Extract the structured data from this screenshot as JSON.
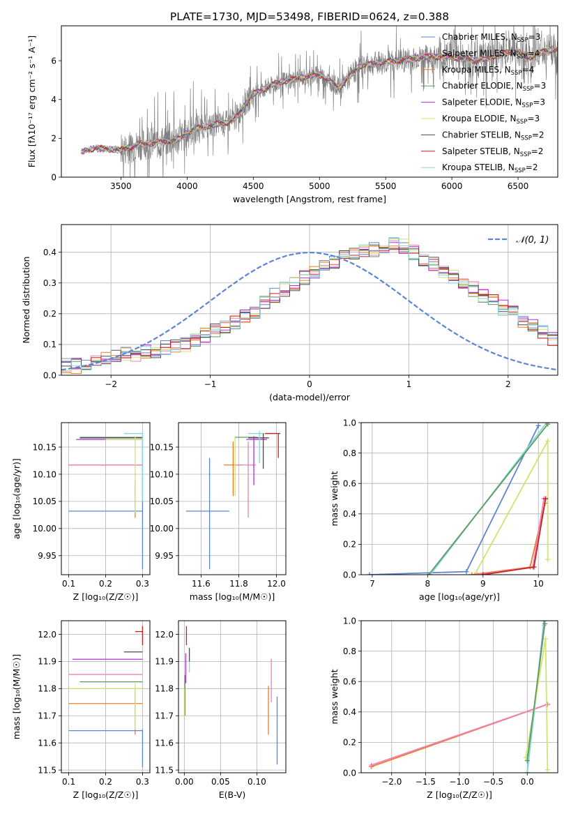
{
  "figure_title": "PLATE=1730, MJD=53498, FIBERID=0624, z=0.388",
  "series": [
    {
      "name": "Chabrier MILES",
      "nssp": "3",
      "color": "#5b84d6"
    },
    {
      "name": "Salpeter MILES",
      "nssp": "4",
      "color": "#ef7fbd"
    },
    {
      "name": "Kroupa MILES",
      "nssp": "4",
      "color": "#f07c24"
    },
    {
      "name": "Chabrier ELODIE",
      "nssp": "3",
      "color": "#5e9a5e"
    },
    {
      "name": "Salpeter ELODIE",
      "nssp": "3",
      "color": "#b02fd8"
    },
    {
      "name": "Kroupa ELODIE",
      "nssp": "3",
      "color": "#cfe46a"
    },
    {
      "name": "Chabrier STELIB",
      "nssp": "2",
      "color": "#4a4a4a"
    },
    {
      "name": "Salpeter STELIB",
      "nssp": "2",
      "color": "#c81e1e"
    },
    {
      "name": "Kroupa STELIB",
      "nssp": "2",
      "color": "#86d6dd"
    }
  ],
  "chart_data": [
    {
      "id": "spectrum",
      "type": "line",
      "xlabel": "wavelength [Angstrom, rest frame]",
      "ylabel": "Flux [fλ10⁻¹⁷ erg cm⁻² s⁻¹ A⁻¹]",
      "xlim": [
        3050,
        6800
      ],
      "ylim": [
        0,
        7.8
      ],
      "xticks": [
        3500,
        4000,
        4500,
        5000,
        5500,
        6000,
        6500
      ],
      "yticks": [
        0,
        2,
        4,
        6
      ],
      "data_color": "#808080",
      "continuum": [
        [
          3200,
          1.3
        ],
        [
          3300,
          1.5
        ],
        [
          3400,
          1.45
        ],
        [
          3500,
          1.4
        ],
        [
          3650,
          1.7
        ],
        [
          3800,
          1.8
        ],
        [
          3950,
          2.0
        ],
        [
          4050,
          2.5
        ],
        [
          4200,
          2.7
        ],
        [
          4350,
          2.9
        ],
        [
          4500,
          4.3
        ],
        [
          4600,
          4.6
        ],
        [
          4700,
          4.9
        ],
        [
          4850,
          5.1
        ],
        [
          5000,
          5.3
        ],
        [
          5150,
          4.6
        ],
        [
          5300,
          5.7
        ],
        [
          5450,
          5.9
        ],
        [
          5600,
          6.0
        ],
        [
          5800,
          6.2
        ],
        [
          6000,
          6.2
        ],
        [
          6200,
          6.0
        ],
        [
          6400,
          6.4
        ],
        [
          6500,
          6.5
        ],
        [
          6560,
          6.1
        ],
        [
          6700,
          6.5
        ],
        [
          6800,
          6.6
        ]
      ]
    },
    {
      "id": "residuals",
      "type": "line",
      "xlabel": "(data-model)/error",
      "ylabel": "Normed distribution",
      "xlim": [
        -2.5,
        2.5
      ],
      "ylim": [
        0,
        0.49
      ],
      "xticks": [
        -2,
        -1,
        0,
        1,
        2
      ],
      "yticks": [
        0.0,
        0.1,
        0.2,
        0.3,
        0.4
      ],
      "gaussian_label": "𝒩(0, 1)",
      "gaussian_color": "#5b84d6",
      "bin_start": -2.5,
      "bin_width": 0.1,
      "base_counts": [
        0.03,
        0.03,
        0.03,
        0.04,
        0.05,
        0.06,
        0.07,
        0.07,
        0.08,
        0.08,
        0.09,
        0.1,
        0.1,
        0.11,
        0.13,
        0.15,
        0.16,
        0.17,
        0.19,
        0.21,
        0.24,
        0.26,
        0.28,
        0.3,
        0.32,
        0.34,
        0.35,
        0.37,
        0.38,
        0.39,
        0.4,
        0.41,
        0.42,
        0.43,
        0.42,
        0.4,
        0.38,
        0.36,
        0.34,
        0.32,
        0.3,
        0.28,
        0.26,
        0.24,
        0.22,
        0.2,
        0.18,
        0.16,
        0.14,
        0.12,
        0.11,
        0.1,
        0.08,
        0.07,
        0.06,
        0.05,
        0.05,
        0.04,
        0.04,
        0.03
      ]
    },
    {
      "id": "z-age",
      "type": "scatter",
      "xlabel": "Z [log₁₀(Z/Z☉)]",
      "ylabel": "age  [log₁₀(age/yr)]",
      "xlim": [
        0.08,
        0.32
      ],
      "ylim": [
        9.915,
        10.195
      ],
      "xticks": [
        0.1,
        0.2,
        0.3
      ],
      "yticks": [
        9.95,
        10.0,
        10.05,
        10.1,
        10.15
      ],
      "hbars": [
        {
          "series": 0,
          "y": 10.032,
          "x0": 0.1,
          "x1": 0.3
        },
        {
          "series": 2,
          "y": 10.117,
          "x0": 0.1,
          "x1": 0.3
        },
        {
          "series": 1,
          "y": 10.117,
          "x0": 0.1,
          "x1": 0.3
        },
        {
          "series": 4,
          "y": 10.164,
          "x0": 0.12,
          "x1": 0.3
        },
        {
          "series": 3,
          "y": 10.168,
          "x0": 0.13,
          "x1": 0.3
        },
        {
          "series": 6,
          "y": 10.167,
          "x0": 0.13,
          "x1": 0.3
        },
        {
          "series": 8,
          "y": 10.175,
          "x0": 0.25,
          "x1": 0.3
        },
        {
          "series": 5,
          "y": 10.164,
          "x0": 0.2,
          "x1": 0.3
        }
      ],
      "vbars": [
        {
          "series": 0,
          "x": 0.3,
          "y0": 9.925,
          "y1": 10.17
        },
        {
          "series": 2,
          "x": 0.28,
          "y0": 10.02,
          "y1": 10.085
        },
        {
          "series": 5,
          "x": 0.28,
          "y0": 10.03,
          "y1": 10.17
        },
        {
          "series": 8,
          "x": 0.3,
          "y0": 10.05,
          "y1": 10.175
        }
      ]
    },
    {
      "id": "mass-age",
      "type": "scatter",
      "xlabel": "mass [log₁₀(M/M☉)]",
      "ylabel": "",
      "xlim": [
        11.48,
        12.05
      ],
      "ylim": [
        9.915,
        10.195
      ],
      "xticks": [
        11.6,
        11.8,
        12.0
      ],
      "yticks": [
        9.95,
        10.0,
        10.05,
        10.1,
        10.15
      ],
      "hbars": [
        {
          "series": 0,
          "y": 10.032,
          "x0": 11.52,
          "x1": 11.75
        },
        {
          "series": 2,
          "y": 10.117,
          "x0": 11.72,
          "x1": 11.82
        },
        {
          "series": 1,
          "y": 10.117,
          "x0": 11.8,
          "x1": 11.89
        },
        {
          "series": 3,
          "y": 10.168,
          "x0": 11.78,
          "x1": 11.9
        },
        {
          "series": 4,
          "y": 10.164,
          "x0": 11.84,
          "x1": 11.95
        },
        {
          "series": 6,
          "y": 10.167,
          "x0": 11.85,
          "x1": 11.96
        },
        {
          "series": 8,
          "y": 10.175,
          "x0": 11.85,
          "x1": 11.98
        },
        {
          "series": 7,
          "y": 10.175,
          "x0": 11.94,
          "x1": 12.02
        }
      ],
      "vbars": [
        {
          "series": 0,
          "x": 11.645,
          "y0": 9.925,
          "y1": 10.13
        },
        {
          "series": 5,
          "x": 11.78,
          "y0": 10.06,
          "y1": 10.17
        },
        {
          "series": 2,
          "x": 11.77,
          "y0": 10.06,
          "y1": 10.16
        },
        {
          "series": 1,
          "x": 11.85,
          "y0": 10.02,
          "y1": 10.16
        },
        {
          "series": 4,
          "x": 11.88,
          "y0": 10.08,
          "y1": 10.17
        },
        {
          "series": 6,
          "x": 11.93,
          "y0": 10.11,
          "y1": 10.175
        },
        {
          "series": 8,
          "x": 11.91,
          "y0": 10.12,
          "y1": 10.18
        },
        {
          "series": 7,
          "x": 12.01,
          "y0": 10.13,
          "y1": 10.175
        }
      ]
    },
    {
      "id": "age-weight",
      "type": "line",
      "xlabel": "age  [log₁₀(age/yr)]",
      "ylabel": "mass weight",
      "xlim": [
        6.8,
        10.35
      ],
      "ylim": [
        0,
        1.0
      ],
      "xticks": [
        7,
        8,
        9,
        10
      ],
      "yticks": [
        0.0,
        0.2,
        0.4,
        0.6,
        0.8,
        1.0
      ],
      "lines": [
        {
          "series": 0,
          "points": [
            [
              6.95,
              0.0
            ],
            [
              8.7,
              0.02
            ],
            [
              10.0,
              0.98
            ]
          ]
        },
        {
          "series": 8,
          "points": [
            [
              8.05,
              0.0
            ],
            [
              10.15,
              1.0
            ]
          ]
        },
        {
          "series": 3,
          "points": [
            [
              8.02,
              0.0
            ],
            [
              10.17,
              0.99
            ]
          ]
        },
        {
          "series": 5,
          "points": [
            [
              8.85,
              0.0
            ],
            [
              10.17,
              0.88
            ],
            [
              10.17,
              0.1
            ]
          ]
        },
        {
          "series": 2,
          "points": [
            [
              8.8,
              0.0
            ],
            [
              9.85,
              0.05
            ],
            [
              10.12,
              0.47
            ]
          ]
        },
        {
          "series": 1,
          "points": [
            [
              8.9,
              0.0
            ],
            [
              9.9,
              0.05
            ],
            [
              10.1,
              0.5
            ]
          ]
        },
        {
          "series": 7,
          "points": [
            [
              9.0,
              0.0
            ],
            [
              9.92,
              0.05
            ],
            [
              10.13,
              0.5
            ]
          ]
        }
      ]
    },
    {
      "id": "z-mass",
      "type": "scatter",
      "xlabel": "Z [log₁₀(Z/Z☉)]",
      "ylabel": "mass [log₁₀(M/M☉)]",
      "xlim": [
        0.08,
        0.32
      ],
      "ylim": [
        11.49,
        12.05
      ],
      "xticks": [
        0.1,
        0.2,
        0.3
      ],
      "yticks": [
        11.5,
        11.6,
        11.7,
        11.8,
        11.9,
        12.0
      ],
      "hbars": [
        {
          "series": 0,
          "y": 11.645,
          "x0": 0.1,
          "x1": 0.3
        },
        {
          "series": 2,
          "y": 11.745,
          "x0": 0.1,
          "x1": 0.3
        },
        {
          "series": 5,
          "y": 11.8,
          "x0": 0.1,
          "x1": 0.3
        },
        {
          "series": 3,
          "y": 11.825,
          "x0": 0.13,
          "x1": 0.3
        },
        {
          "series": 1,
          "y": 11.852,
          "x0": 0.1,
          "x1": 0.3
        },
        {
          "series": 4,
          "y": 11.908,
          "x0": 0.11,
          "x1": 0.3
        },
        {
          "series": 6,
          "y": 11.935,
          "x0": 0.25,
          "x1": 0.3
        },
        {
          "series": 7,
          "y": 12.01,
          "x0": 0.28,
          "x1": 0.3
        }
      ],
      "vbars": [
        {
          "series": 0,
          "x": 0.3,
          "y0": 11.51,
          "y1": 11.65
        },
        {
          "series": 2,
          "x": 0.28,
          "y0": 11.63,
          "y1": 11.8
        },
        {
          "series": 5,
          "x": 0.28,
          "y0": 11.65,
          "y1": 11.82
        },
        {
          "series": 7,
          "x": 0.3,
          "y0": 11.96,
          "y1": 12.03
        }
      ]
    },
    {
      "id": "ebv-mass",
      "type": "scatter",
      "xlabel": "E(B-V)",
      "ylabel": "",
      "xlim": [
        -0.008,
        0.14
      ],
      "ylim": [
        11.49,
        12.05
      ],
      "xticks": [
        0.0,
        0.05,
        0.1
      ],
      "yticks": [
        11.5,
        11.6,
        11.7,
        11.8,
        11.9,
        12.0
      ],
      "vbars": [
        {
          "series": 3,
          "x": 0.001,
          "y0": 11.7,
          "y1": 11.85
        },
        {
          "series": 5,
          "x": 0.0,
          "y0": 11.7,
          "y1": 11.8
        },
        {
          "series": 4,
          "x": 0.002,
          "y0": 11.82,
          "y1": 11.93
        },
        {
          "series": 7,
          "x": 0.003,
          "y0": 11.96,
          "y1": 12.03
        },
        {
          "series": 8,
          "x": 0.007,
          "y0": 11.86,
          "y1": 11.91
        },
        {
          "series": 6,
          "x": 0.007,
          "y0": 11.9,
          "y1": 11.95
        },
        {
          "series": 2,
          "x": 0.116,
          "y0": 11.63,
          "y1": 11.81
        },
        {
          "series": 1,
          "x": 0.12,
          "y0": 11.75,
          "y1": 11.91
        },
        {
          "series": 0,
          "x": 0.128,
          "y0": 11.52,
          "y1": 11.77
        }
      ]
    },
    {
      "id": "z-weight",
      "type": "line",
      "xlabel": "Z [log₁₀(Z/Z☉)]",
      "ylabel": "mass weight",
      "xlim": [
        -2.45,
        0.45
      ],
      "ylim": [
        0,
        1.0
      ],
      "xticks": [
        -2.0,
        -1.5,
        -1.0,
        -0.5,
        0.0,
        0.5
      ],
      "yticks": [
        0.0,
        0.2,
        0.4,
        0.6,
        0.8,
        1.0
      ],
      "lines": [
        {
          "series": 2,
          "points": [
            [
              -2.3,
              0.04
            ],
            [
              0.3,
              0.45
            ]
          ]
        },
        {
          "series": 1,
          "points": [
            [
              -2.3,
              0.05
            ],
            [
              0.3,
              0.45
            ]
          ]
        },
        {
          "series": 0,
          "points": [
            [
              0.0,
              0.0
            ],
            [
              0.25,
              1.0
            ]
          ]
        },
        {
          "series": 8,
          "points": [
            [
              0.0,
              0.0
            ],
            [
              0.25,
              0.97
            ]
          ]
        },
        {
          "series": 5,
          "points": [
            [
              -0.02,
              0.1
            ],
            [
              0.27,
              0.88
            ],
            [
              0.3,
              0.02
            ]
          ]
        },
        {
          "series": 3,
          "points": [
            [
              0.0,
              0.08
            ],
            [
              0.26,
              0.98
            ]
          ]
        }
      ]
    }
  ]
}
